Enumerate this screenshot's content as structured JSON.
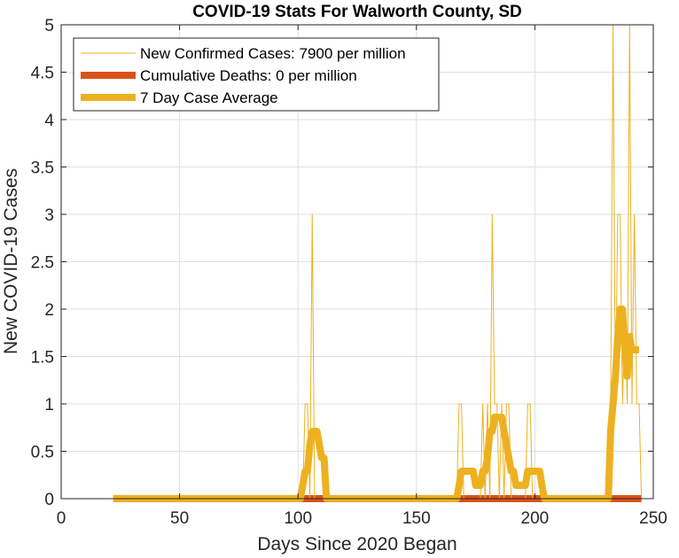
{
  "chart_data": {
    "type": "line",
    "title": "COVID-19 Stats For Walworth County, SD",
    "xlabel": "Days Since 2020 Began",
    "ylabel": "New COVID-19 Cases",
    "xlim": [
      0,
      250
    ],
    "ylim": [
      0,
      5
    ],
    "xticks": [
      0,
      50,
      100,
      150,
      200,
      250
    ],
    "yticks": [
      0,
      0.5,
      1,
      1.5,
      2,
      2.5,
      3,
      3.5,
      4,
      4.5,
      5
    ],
    "ytick_labels": [
      "0",
      "0.5",
      "1",
      "1.5",
      "2",
      "2.5",
      "3",
      "3.5",
      "4",
      "4.5",
      "5"
    ],
    "grid": true,
    "legend_position": "top-left",
    "series": [
      {
        "name": "New Confirmed Cases: 7900 per million",
        "color": "#EDB120",
        "line": "thin",
        "points": [
          [
            22,
            0
          ],
          [
            102,
            0
          ],
          [
            103,
            1
          ],
          [
            104,
            1
          ],
          [
            105,
            0
          ],
          [
            106,
            3
          ],
          [
            107,
            0
          ],
          [
            167,
            0
          ],
          [
            168,
            1
          ],
          [
            169,
            1
          ],
          [
            170,
            0
          ],
          [
            177,
            0
          ],
          [
            178,
            1
          ],
          [
            179,
            0
          ],
          [
            180,
            1
          ],
          [
            181,
            0
          ],
          [
            182,
            3
          ],
          [
            183,
            1
          ],
          [
            184,
            1
          ],
          [
            185,
            0
          ],
          [
            186,
            1
          ],
          [
            187,
            0
          ],
          [
            188,
            1
          ],
          [
            189,
            1
          ],
          [
            190,
            0
          ],
          [
            196,
            0
          ],
          [
            197,
            1
          ],
          [
            198,
            1
          ],
          [
            199,
            0
          ],
          [
            205,
            0
          ],
          [
            231,
            0
          ],
          [
            232,
            1
          ],
          [
            233,
            5
          ],
          [
            234,
            1
          ],
          [
            235,
            3
          ],
          [
            236,
            3
          ],
          [
            237,
            1
          ],
          [
            238,
            2
          ],
          [
            239,
            1
          ],
          [
            240,
            5
          ],
          [
            241,
            1
          ],
          [
            242,
            3
          ],
          [
            243,
            1
          ],
          [
            244,
            1
          ],
          [
            245,
            0
          ]
        ]
      },
      {
        "name": "Cumulative Deaths: 0 per million",
        "color": "#D95319",
        "line": "thick",
        "points": [
          [
            22,
            0
          ],
          [
            245,
            0
          ]
        ]
      },
      {
        "name": "7 Day Case Average",
        "color": "#EDB120",
        "line": "thick",
        "points": [
          [
            22,
            0
          ],
          [
            101,
            0
          ],
          [
            102,
            0.14
          ],
          [
            103,
            0.29
          ],
          [
            104,
            0.29
          ],
          [
            105,
            0.57
          ],
          [
            106,
            0.71
          ],
          [
            107,
            0.71
          ],
          [
            108,
            0.71
          ],
          [
            109,
            0.57
          ],
          [
            110,
            0.43
          ],
          [
            111,
            0.43
          ],
          [
            112,
            0
          ],
          [
            167,
            0
          ],
          [
            168,
            0.14
          ],
          [
            169,
            0.29
          ],
          [
            170,
            0.29
          ],
          [
            171,
            0.29
          ],
          [
            172,
            0.29
          ],
          [
            173,
            0.29
          ],
          [
            174,
            0.29
          ],
          [
            175,
            0.14
          ],
          [
            176,
            0.14
          ],
          [
            177,
            0.14
          ],
          [
            178,
            0.29
          ],
          [
            179,
            0.29
          ],
          [
            180,
            0.43
          ],
          [
            181,
            0.71
          ],
          [
            182,
            0.71
          ],
          [
            183,
            0.86
          ],
          [
            184,
            0.86
          ],
          [
            185,
            0.86
          ],
          [
            186,
            0.86
          ],
          [
            187,
            0.71
          ],
          [
            188,
            0.57
          ],
          [
            189,
            0.43
          ],
          [
            190,
            0.29
          ],
          [
            191,
            0.29
          ],
          [
            192,
            0.14
          ],
          [
            193,
            0.14
          ],
          [
            194,
            0.14
          ],
          [
            195,
            0.14
          ],
          [
            196,
            0.14
          ],
          [
            197,
            0.29
          ],
          [
            198,
            0.29
          ],
          [
            199,
            0.29
          ],
          [
            200,
            0.29
          ],
          [
            201,
            0.29
          ],
          [
            202,
            0.29
          ],
          [
            203,
            0.14
          ],
          [
            204,
            0
          ],
          [
            231,
            0
          ],
          [
            232,
            0.71
          ],
          [
            233,
            1.0
          ],
          [
            234,
            1.29
          ],
          [
            235,
            1.71
          ],
          [
            236,
            2.0
          ],
          [
            237,
            2.0
          ],
          [
            238,
            1.57
          ],
          [
            239,
            1.29
          ],
          [
            240,
            1.71
          ],
          [
            241,
            1.57
          ],
          [
            242,
            1.57
          ],
          [
            243,
            1.57
          ],
          [
            244,
            1.57
          ]
        ]
      }
    ]
  }
}
